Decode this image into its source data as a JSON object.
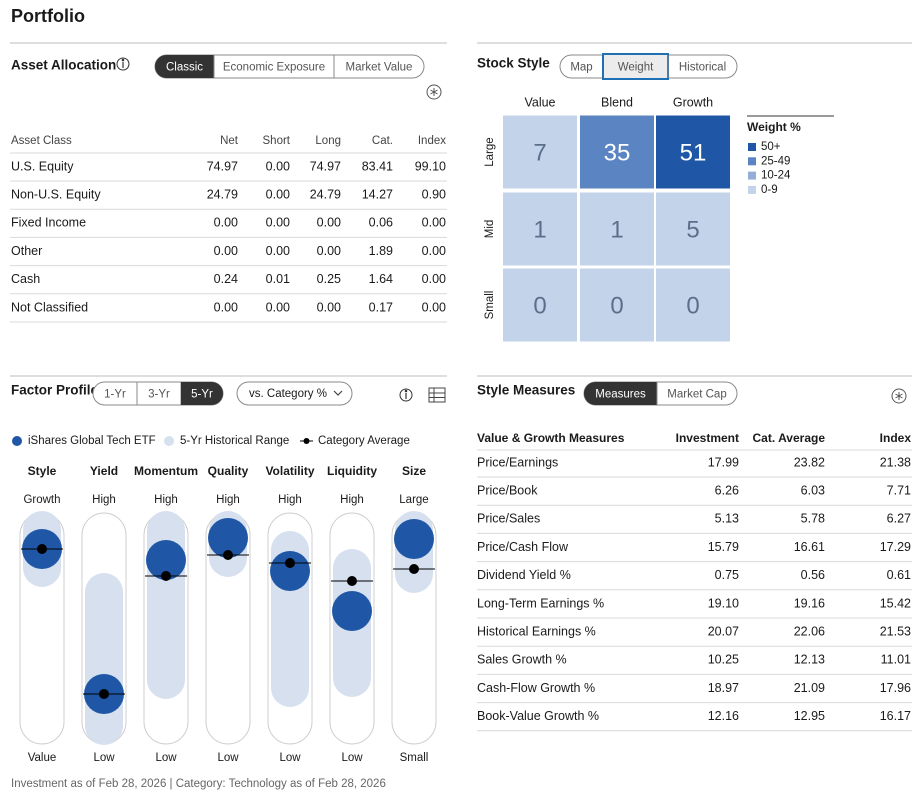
{
  "title": "Portfolio",
  "asset_allocation": {
    "heading": "Asset Allocation",
    "tabs": [
      "Classic",
      "Economic Exposure",
      "Market Value"
    ],
    "active_tab": 0,
    "columns": [
      "Asset Class",
      "Net",
      "Short",
      "Long",
      "Cat.",
      "Index"
    ],
    "rows": [
      [
        "U.S. Equity",
        "74.97",
        "0.00",
        "74.97",
        "83.41",
        "99.10"
      ],
      [
        "Non-U.S. Equity",
        "24.79",
        "0.00",
        "24.79",
        "14.27",
        "0.90"
      ],
      [
        "Fixed Income",
        "0.00",
        "0.00",
        "0.00",
        "0.06",
        "0.00"
      ],
      [
        "Other",
        "0.00",
        "0.00",
        "0.00",
        "1.89",
        "0.00"
      ],
      [
        "Cash",
        "0.24",
        "0.01",
        "0.25",
        "1.64",
        "0.00"
      ],
      [
        "Not Classified",
        "0.00",
        "0.00",
        "0.00",
        "0.17",
        "0.00"
      ]
    ]
  },
  "stock_style": {
    "heading": "Stock Style",
    "tabs": [
      "Map",
      "Weight",
      "Historical"
    ],
    "active_tab": 1,
    "columns": [
      "Value",
      "Blend",
      "Growth"
    ],
    "rows": [
      "Large",
      "Mid",
      "Small"
    ],
    "values": [
      [
        7,
        35,
        51
      ],
      [
        1,
        1,
        5
      ],
      [
        0,
        0,
        0
      ]
    ],
    "colors": [
      [
        "#c3d3e9",
        "#5b84c2",
        "#1f57a6"
      ],
      [
        "#c3d3e9",
        "#c3d3e9",
        "#c3d3e9"
      ],
      [
        "#c3d3e9",
        "#c3d3e9",
        "#c3d3e9"
      ]
    ],
    "legend_title": "Weight %",
    "legend": [
      {
        "label": "50+",
        "color": "#1f57a6"
      },
      {
        "label": "25-49",
        "color": "#5b84c2"
      },
      {
        "label": "10-24",
        "color": "#93afd8"
      },
      {
        "label": "0-9",
        "color": "#c3d3e9"
      }
    ]
  },
  "factor_profile": {
    "heading": "Factor Profile",
    "tabs": [
      "1-Yr",
      "3-Yr",
      "5-Yr"
    ],
    "active_tab": 2,
    "dropdown": "vs. Category %",
    "legend": [
      "iShares Global Tech ETF",
      "5-Yr Historical Range",
      "Category Average"
    ],
    "fund_color": "#1f57a6",
    "range_color": "#d6e0ef",
    "category_color": "#000000",
    "ylim": [
      0,
      100
    ],
    "factors": [
      {
        "name": "Style",
        "top": "Growth",
        "bottom": "Value",
        "fund": 89.5,
        "range": [
          79,
          100
        ],
        "category": 89.5
      },
      {
        "name": "Yield",
        "top": "High",
        "bottom": "Low",
        "fund": 17,
        "range": [
          0,
          69
        ],
        "category": 17
      },
      {
        "name": "Momentum",
        "top": "High",
        "bottom": "Low",
        "fund": 84,
        "range": [
          23,
          100
        ],
        "category": 76
      },
      {
        "name": "Quality",
        "top": "High",
        "bottom": "Low",
        "fund": 95,
        "range": [
          84,
          100
        ],
        "category": 86.5
      },
      {
        "name": "Volatility",
        "top": "High",
        "bottom": "Low",
        "fund": 78.5,
        "range": [
          19,
          90
        ],
        "category": 82.5
      },
      {
        "name": "Liquidity",
        "top": "High",
        "bottom": "Low",
        "fund": 58.5,
        "range": [
          24,
          81
        ],
        "category": 73.5
      },
      {
        "name": "Size",
        "top": "Large",
        "bottom": "Small",
        "fund": 94.5,
        "range": [
          76,
          100
        ],
        "category": 79.5
      }
    ],
    "footnote": "Investment as of Feb 28, 2026 | Category: Technology as of Feb 28, 2026"
  },
  "style_measures": {
    "heading": "Style Measures",
    "tabs": [
      "Measures",
      "Market Cap"
    ],
    "active_tab": 0,
    "columns": [
      "Value & Growth Measures",
      "Investment",
      "Cat. Average",
      "Index"
    ],
    "rows": [
      [
        "Price/Earnings",
        "17.99",
        "23.82",
        "21.38"
      ],
      [
        "Price/Book",
        "6.26",
        "6.03",
        "7.71"
      ],
      [
        "Price/Sales",
        "5.13",
        "5.78",
        "6.27"
      ],
      [
        "Price/Cash Flow",
        "15.79",
        "16.61",
        "17.29"
      ],
      [
        "Dividend Yield %",
        "0.75",
        "0.56",
        "0.61"
      ],
      [
        "Long-Term Earnings %",
        "19.10",
        "19.16",
        "15.42"
      ],
      [
        "Historical Earnings %",
        "20.07",
        "22.06",
        "21.53"
      ],
      [
        "Sales Growth %",
        "10.25",
        "12.13",
        "11.01"
      ],
      [
        "Cash-Flow Growth %",
        "18.97",
        "21.09",
        "17.96"
      ],
      [
        "Book-Value Growth %",
        "12.16",
        "12.95",
        "16.17"
      ]
    ]
  }
}
